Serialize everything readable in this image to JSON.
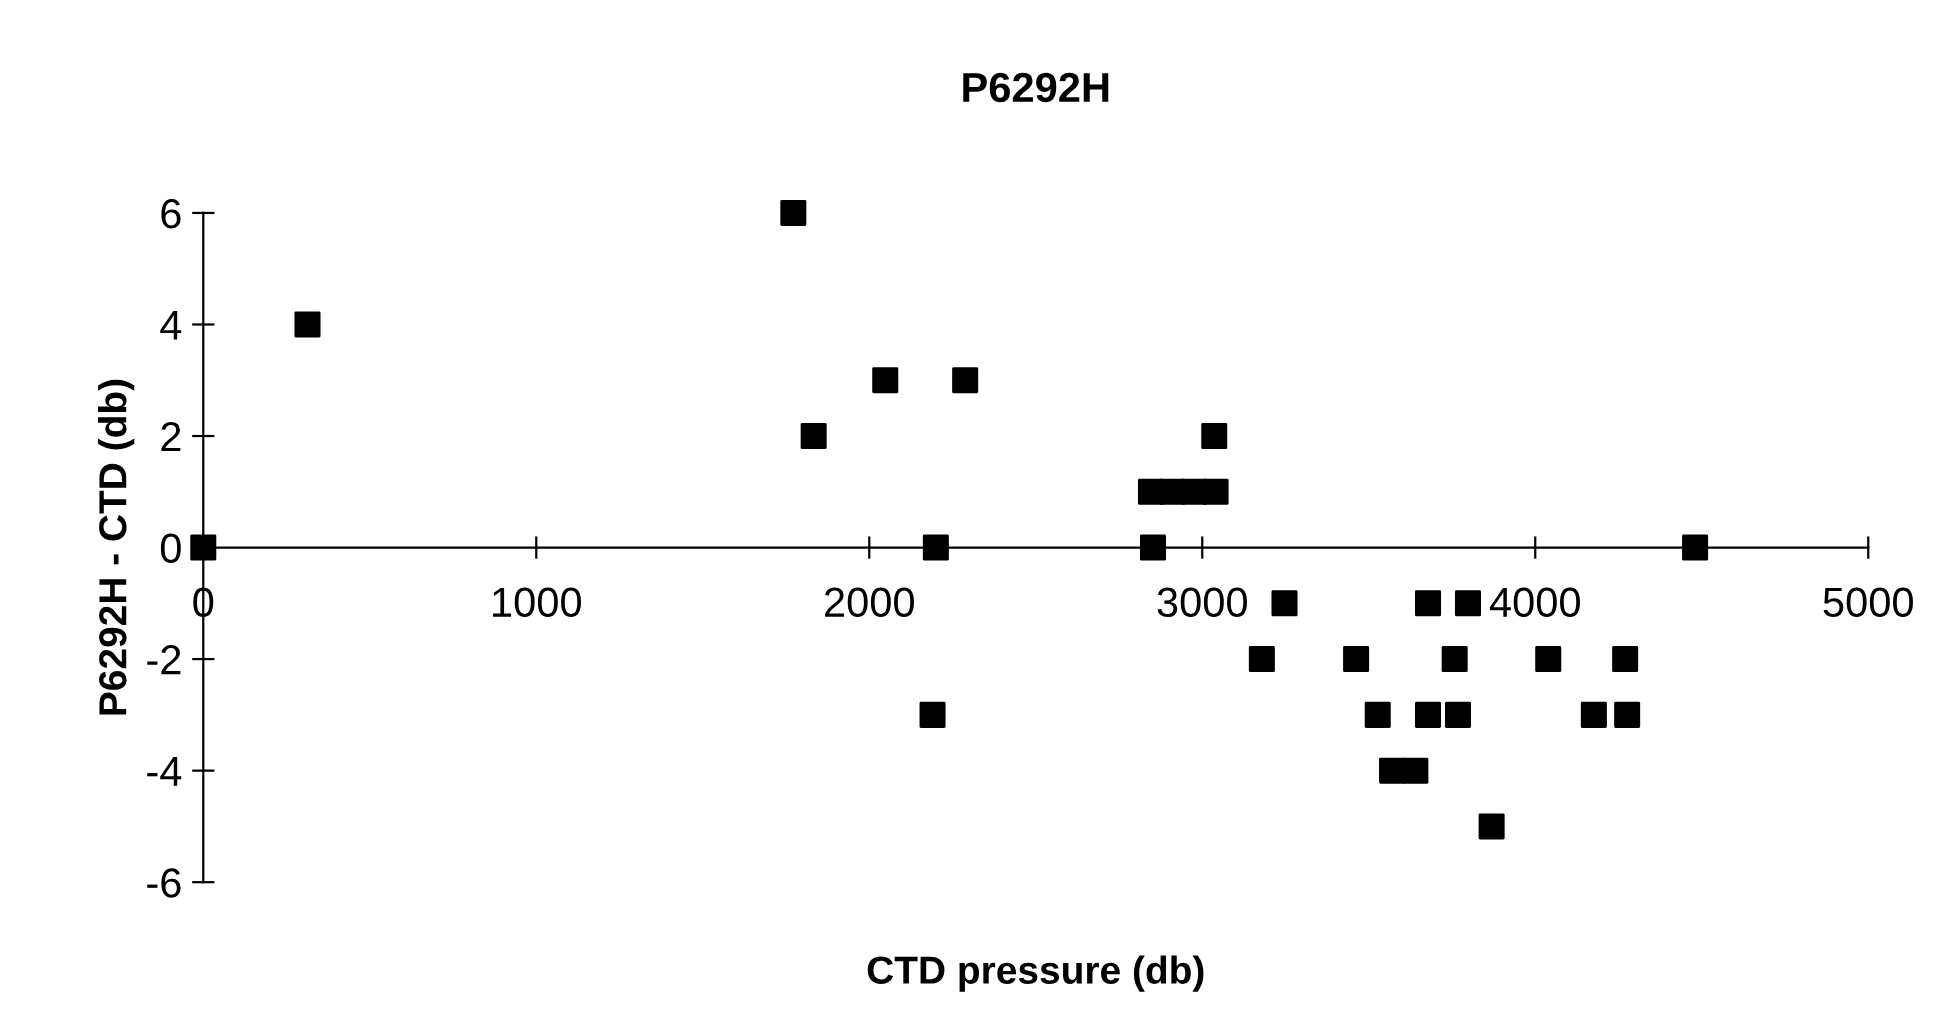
{
  "chart_data": {
    "type": "scatter",
    "title": "P6292H",
    "xlabel": "CTD pressure (db)",
    "ylabel": "P6292H - CTD (db)",
    "x": [
      0,
      313,
      1772,
      1833,
      2048,
      2288,
      2200,
      2190,
      3036,
      2846,
      2910,
      2975,
      3040,
      2852,
      4480,
      3247,
      3678,
      3798,
      3179,
      3462,
      3758,
      4039,
      4270,
      3527,
      3678,
      3768,
      4176,
      4276,
      3570,
      3640,
      3869
    ],
    "values": [
      0,
      4,
      6,
      2,
      3,
      3,
      0,
      -3,
      2,
      1,
      1,
      1,
      1,
      0,
      0,
      -1,
      -1,
      -1,
      -2,
      -2,
      -2,
      -2,
      -2,
      -3,
      -3,
      -3,
      -3,
      -3,
      -4,
      -4,
      -5
    ],
    "color": "#000000",
    "marker": "square",
    "grid": false,
    "legend": false,
    "xlim": [
      0,
      5000
    ],
    "xticks": [
      0,
      1000,
      2000,
      3000,
      4000,
      5000
    ],
    "ylim": [
      -6,
      6
    ],
    "yticks": [
      -6,
      -4,
      -2,
      0,
      2,
      4,
      6
    ]
  }
}
